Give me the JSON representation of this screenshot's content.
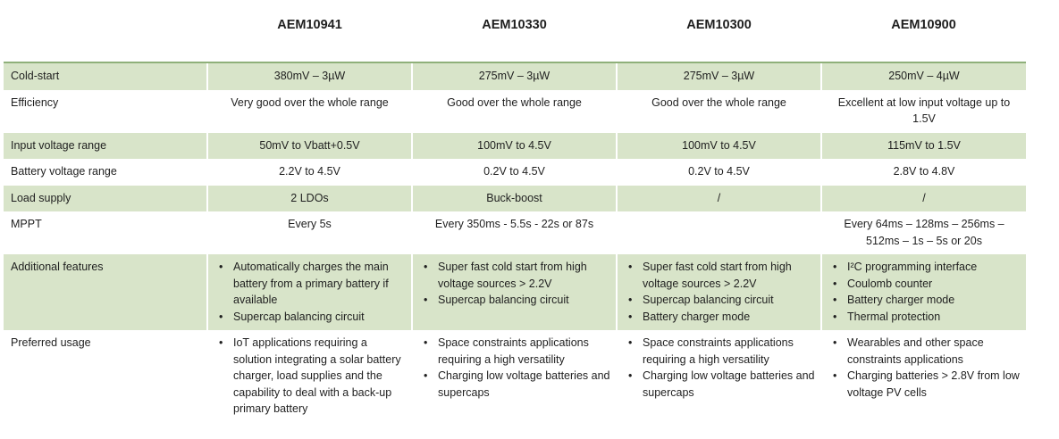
{
  "headers": [
    "",
    "AEM10941",
    "AEM10330",
    "AEM10300",
    "AEM10900"
  ],
  "rows": [
    {
      "label": "Cold-start",
      "cells": [
        "380mV – 3µW",
        "275mV – 3µW",
        "275mV – 3µW",
        "250mV – 4µW"
      ]
    },
    {
      "label": "Efficiency",
      "cells": [
        "Very good over the whole range",
        "Good over the whole range",
        "Good over the whole range",
        "Excellent at low input voltage up to 1.5V"
      ]
    },
    {
      "label": "Input voltage range",
      "cells": [
        "50mV to Vbatt+0.5V",
        "100mV to 4.5V",
        "100mV to 4.5V",
        "115mV to 1.5V"
      ]
    },
    {
      "label": "Battery voltage range",
      "cells": [
        "2.2V to 4.5V",
        "0.2V to 4.5V",
        "0.2V to 4.5V",
        "2.8V to 4.8V"
      ]
    },
    {
      "label": "Load supply",
      "cells": [
        "2 LDOs",
        "Buck-boost",
        "/",
        "/"
      ]
    },
    {
      "label": "MPPT",
      "cells": [
        "Every 5s",
        "Every 350ms - 5.5s - 22s or 87s",
        "",
        "Every 64ms – 128ms – 256ms – 512ms – 1s – 5s or 20s"
      ]
    },
    {
      "label": "Additional features",
      "lists": [
        [
          "Automatically charges the main battery from a primary battery if available",
          "Supercap balancing circuit"
        ],
        [
          "Super fast cold start from high voltage sources > 2.2V",
          "Supercap balancing circuit"
        ],
        [
          "Super fast cold start from high voltage sources > 2.2V",
          "Supercap balancing circuit",
          "Battery charger mode"
        ],
        [
          "I²C programming interface",
          "Coulomb counter",
          "Battery charger mode",
          "Thermal protection"
        ]
      ]
    },
    {
      "label": "Preferred usage",
      "lists": [
        [
          "IoT applications requiring a solution integrating a solar battery charger, load supplies and the capability to deal with a back-up primary battery"
        ],
        [
          "Space constraints applications requiring a high versatility",
          "Charging low voltage batteries and supercaps"
        ],
        [
          "Space constraints applications requiring a high versatility",
          "Charging low voltage batteries and supercaps"
        ],
        [
          "Wearables and other space constraints applications",
          "Charging batteries > 2.8V from low voltage PV cells"
        ]
      ]
    }
  ],
  "colors": {
    "shade": "#d8e4c9",
    "rule": "#8fb07a"
  }
}
